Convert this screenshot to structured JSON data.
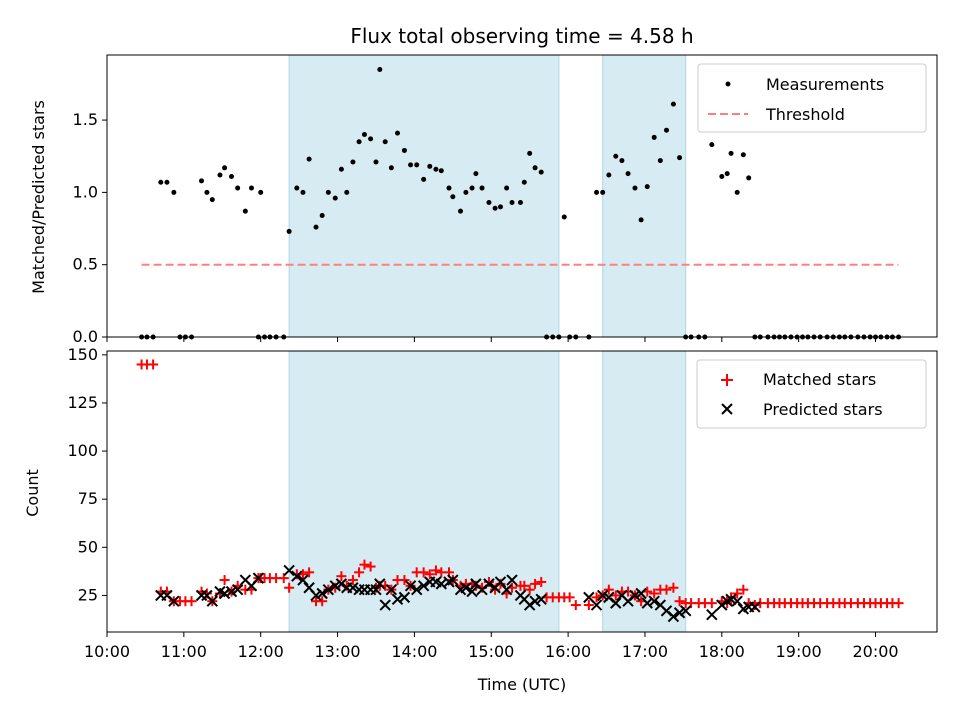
{
  "chart_data": [
    {
      "type": "scatter",
      "title": "Flux total observing time = 4.58 h",
      "xlabel": "",
      "ylabel": "Matched/Predicted stars",
      "xlim": [
        10.0,
        20.8
      ],
      "ylim": [
        0.0,
        1.95
      ],
      "y_ticks": [
        0.0,
        0.5,
        1.0,
        1.5
      ],
      "y_tick_labels": [
        "0.0",
        "0.5",
        "1.0",
        "1.5"
      ],
      "x_tick_labels": [
        "10:00",
        "11:00",
        "12:00",
        "13:00",
        "14:00",
        "15:00",
        "16:00",
        "17:00",
        "18:00",
        "19:00",
        "20:00"
      ],
      "show_x_tick_labels": false,
      "grid": false,
      "legend_position": "top-right",
      "shaded_intervals": [
        [
          12.37,
          15.88
        ],
        [
          16.45,
          17.53
        ]
      ],
      "shade_color": "#add8e6",
      "series": [
        {
          "name": "Measurements",
          "marker": "dot",
          "color": "#000000",
          "x": [
            10.45,
            10.52,
            10.6,
            10.7,
            10.78,
            10.87,
            10.95,
            11.02,
            11.1,
            11.23,
            11.3,
            11.37,
            11.47,
            11.53,
            11.62,
            11.7,
            11.8,
            11.88,
            11.97,
            12.0,
            12.05,
            12.12,
            12.2,
            12.3,
            12.37,
            12.47,
            12.55,
            12.63,
            12.72,
            12.8,
            12.88,
            12.97,
            13.05,
            13.12,
            13.2,
            13.28,
            13.35,
            13.43,
            13.5,
            13.55,
            13.62,
            13.7,
            13.78,
            13.87,
            13.95,
            14.03,
            14.12,
            14.2,
            14.28,
            14.35,
            14.45,
            14.5,
            14.6,
            14.67,
            14.75,
            14.8,
            14.88,
            14.97,
            15.05,
            15.12,
            15.2,
            15.27,
            15.38,
            15.43,
            15.5,
            15.57,
            15.65,
            15.72,
            15.8,
            15.88,
            15.95,
            16.02,
            16.1,
            16.27,
            16.37,
            16.45,
            16.53,
            16.62,
            16.7,
            16.78,
            16.87,
            16.95,
            17.03,
            17.12,
            17.2,
            17.28,
            17.37,
            17.45,
            17.53,
            17.6,
            17.7,
            17.78,
            17.87,
            18.0,
            18.07,
            18.12,
            18.2,
            18.28,
            18.35,
            18.43,
            18.5,
            18.6,
            18.68,
            18.75,
            18.82,
            18.9,
            18.98,
            19.05,
            19.12,
            19.2,
            19.28,
            19.37,
            19.45,
            19.53,
            19.6,
            19.68,
            19.77,
            19.85,
            19.93,
            20.0,
            20.07,
            20.15,
            20.22,
            20.3
          ],
          "y": [
            0.0,
            0.0,
            0.0,
            1.07,
            1.07,
            1.0,
            0.0,
            0.0,
            0.0,
            1.08,
            1.0,
            0.95,
            1.12,
            1.17,
            1.11,
            1.03,
            0.87,
            1.03,
            0.0,
            1.0,
            0.0,
            0.0,
            0.0,
            0.0,
            0.73,
            1.03,
            1.0,
            1.23,
            0.76,
            0.84,
            1.0,
            0.96,
            1.16,
            1.0,
            1.21,
            1.35,
            1.4,
            1.37,
            1.21,
            1.85,
            1.35,
            1.17,
            1.41,
            1.29,
            1.19,
            1.19,
            1.09,
            1.18,
            1.16,
            1.15,
            1.03,
            0.97,
            0.87,
            1.0,
            1.03,
            1.13,
            1.03,
            0.93,
            0.89,
            0.9,
            1.03,
            0.93,
            0.93,
            1.07,
            1.27,
            1.17,
            1.14,
            0.0,
            0.0,
            0.0,
            0.83,
            0.0,
            0.0,
            0.0,
            1.0,
            1.0,
            1.12,
            1.25,
            1.22,
            1.13,
            1.03,
            0.81,
            1.04,
            1.38,
            1.22,
            1.43,
            1.61,
            1.24,
            0.0,
            0.0,
            0.0,
            0.0,
            1.33,
            1.11,
            1.13,
            1.27,
            1.0,
            1.26,
            1.1,
            0.0,
            0.0,
            0.0,
            0.0,
            0.0,
            0.0,
            0.0,
            0.0,
            0.0,
            0.0,
            0.0,
            0.0,
            0.0,
            0.0,
            0.0,
            0.0,
            0.0,
            0.0,
            0.0,
            0.0,
            0.0,
            0.0,
            0.0,
            0.0,
            0.0
          ]
        },
        {
          "name": "Threshold",
          "line": "dashed",
          "color": "#ff8080",
          "x": [
            10.45,
            20.3
          ],
          "y": [
            0.5,
            0.5
          ]
        }
      ]
    },
    {
      "type": "scatter",
      "title": "",
      "xlabel": "Time (UTC)",
      "ylabel": "Count",
      "xlim": [
        10.0,
        20.8
      ],
      "ylim": [
        6,
        152
      ],
      "y_ticks": [
        25,
        50,
        75,
        100,
        125,
        150
      ],
      "y_tick_labels": [
        "25",
        "50",
        "75",
        "100",
        "125",
        "150"
      ],
      "x_ticks": [
        10,
        11,
        12,
        13,
        14,
        15,
        16,
        17,
        18,
        19,
        20
      ],
      "x_tick_labels": [
        "10:00",
        "11:00",
        "12:00",
        "13:00",
        "14:00",
        "15:00",
        "16:00",
        "17:00",
        "18:00",
        "19:00",
        "20:00"
      ],
      "grid": false,
      "legend_position": "top-right",
      "shaded_intervals": [
        [
          12.37,
          15.88
        ],
        [
          16.45,
          17.53
        ]
      ],
      "shade_color": "#add8e6",
      "series": [
        {
          "name": "Matched stars",
          "marker": "plus",
          "color": "#ff0000",
          "x": [
            10.45,
            10.52,
            10.6,
            10.7,
            10.78,
            10.87,
            10.95,
            11.02,
            11.1,
            11.23,
            11.3,
            11.37,
            11.47,
            11.53,
            11.62,
            11.7,
            11.8,
            11.88,
            11.97,
            12.0,
            12.05,
            12.12,
            12.2,
            12.3,
            12.37,
            12.47,
            12.55,
            12.63,
            12.72,
            12.8,
            12.88,
            12.97,
            13.05,
            13.12,
            13.2,
            13.28,
            13.35,
            13.43,
            13.5,
            13.55,
            13.62,
            13.7,
            13.78,
            13.87,
            13.95,
            14.03,
            14.12,
            14.2,
            14.28,
            14.35,
            14.45,
            14.5,
            14.6,
            14.67,
            14.75,
            14.8,
            14.88,
            14.97,
            15.05,
            15.12,
            15.2,
            15.27,
            15.38,
            15.43,
            15.5,
            15.57,
            15.65,
            15.72,
            15.8,
            15.88,
            15.95,
            16.02,
            16.1,
            16.27,
            16.37,
            16.45,
            16.53,
            16.62,
            16.7,
            16.78,
            16.87,
            16.95,
            17.03,
            17.12,
            17.2,
            17.28,
            17.37,
            17.45,
            17.53,
            17.6,
            17.7,
            17.78,
            17.87,
            18.0,
            18.07,
            18.12,
            18.2,
            18.28,
            18.35,
            18.43,
            18.5,
            18.6,
            18.68,
            18.75,
            18.82,
            18.9,
            18.98,
            19.05,
            19.12,
            19.2,
            19.28,
            19.37,
            19.45,
            19.53,
            19.6,
            19.68,
            19.77,
            19.85,
            19.93,
            20.0,
            20.07,
            20.15,
            20.22,
            20.3
          ],
          "y": [
            145,
            145,
            145,
            27,
            27,
            22,
            22,
            22,
            22,
            27,
            26,
            22,
            26,
            33,
            27,
            30,
            28,
            28,
            34,
            34,
            34,
            34,
            34,
            34,
            29,
            36,
            36,
            37,
            22,
            22,
            28,
            29,
            35,
            30,
            33,
            37,
            41,
            40,
            29,
            30,
            30,
            28,
            33,
            33,
            30,
            37,
            37,
            36,
            38,
            37,
            37,
            33,
            30,
            31,
            31,
            30,
            29,
            32,
            28,
            31,
            26,
            29,
            30,
            30,
            28,
            31,
            32,
            24,
            24,
            24,
            24,
            24,
            20,
            20,
            24,
            25,
            28,
            25,
            27,
            27,
            25,
            22,
            27,
            26,
            28,
            28,
            29,
            22,
            21,
            21,
            21,
            21,
            21,
            22,
            21,
            24,
            26,
            28,
            21,
            20,
            21,
            21,
            21,
            21,
            21,
            21,
            21,
            21,
            21,
            21,
            21,
            21,
            21,
            21,
            21,
            21,
            21,
            21,
            21,
            21,
            21,
            21,
            21,
            21
          ]
        },
        {
          "name": "Predicted stars",
          "marker": "x",
          "color": "#000000",
          "x": [
            10.7,
            10.78,
            10.87,
            11.23,
            11.3,
            11.37,
            11.47,
            11.53,
            11.62,
            11.7,
            11.8,
            11.88,
            11.97,
            12.37,
            12.47,
            12.55,
            12.63,
            12.72,
            12.8,
            12.88,
            12.97,
            13.05,
            13.12,
            13.2,
            13.28,
            13.35,
            13.43,
            13.5,
            13.55,
            13.62,
            13.7,
            13.78,
            13.87,
            13.95,
            14.03,
            14.12,
            14.2,
            14.28,
            14.35,
            14.45,
            14.5,
            14.6,
            14.67,
            14.75,
            14.8,
            14.88,
            14.97,
            15.05,
            15.12,
            15.2,
            15.27,
            15.38,
            15.43,
            15.5,
            15.57,
            15.65,
            16.27,
            16.37,
            16.45,
            16.53,
            16.62,
            16.7,
            16.78,
            16.87,
            16.95,
            17.03,
            17.12,
            17.2,
            17.28,
            17.37,
            17.45,
            17.53,
            17.87,
            18.0,
            18.07,
            18.12,
            18.2,
            18.28,
            18.35,
            18.43
          ],
          "y": [
            25,
            25,
            22,
            25,
            25,
            22,
            27,
            26,
            27,
            28,
            33,
            30,
            34,
            38,
            35,
            33,
            29,
            25,
            26,
            28,
            30,
            31,
            29,
            29,
            28,
            28,
            28,
            28,
            31,
            20,
            28,
            23,
            24,
            30,
            28,
            30,
            32,
            32,
            31,
            32,
            33,
            28,
            29,
            27,
            31,
            28,
            31,
            29,
            32,
            28,
            33,
            25,
            23,
            20,
            22,
            23,
            24,
            20,
            25,
            24,
            21,
            25,
            22,
            25,
            26,
            21,
            22,
            20,
            17,
            14,
            16,
            17,
            15,
            20,
            22,
            23,
            22,
            18,
            19,
            19
          ]
        }
      ]
    }
  ]
}
